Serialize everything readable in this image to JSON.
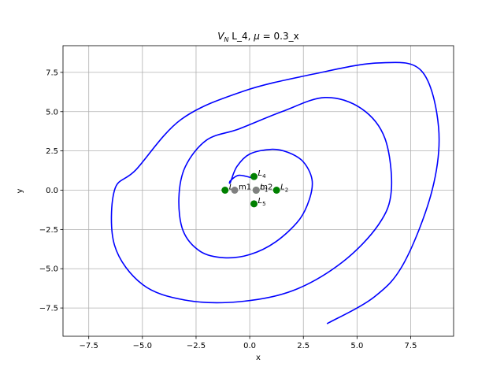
{
  "chart_data": {
    "type": "line",
    "title": "V_N L_4, μ = 0.3_x",
    "title_parts": {
      "symbol": "V",
      "subscript": "N",
      "rest": " L_4, ",
      "mu": "μ",
      "tail": " = 0.3_x"
    },
    "xlabel": "x",
    "ylabel": "y",
    "xlim": [
      -8.7,
      9.5
    ],
    "ylim": [
      -9.3,
      9.2
    ],
    "xticks": [
      -7.5,
      -5.0,
      -2.5,
      0.0,
      2.5,
      5.0,
      7.5
    ],
    "xtick_labels": [
      "−7.5",
      "−5.0",
      "−2.5",
      "0.0",
      "2.5",
      "5.0",
      "7.5"
    ],
    "yticks": [
      -7.5,
      -5.0,
      -2.5,
      0.0,
      2.5,
      5.0,
      7.5
    ],
    "ytick_labels": [
      "−7.5",
      "−5.0",
      "−2.5",
      "0.0",
      "2.5",
      "5.0",
      "7.5"
    ],
    "grid": true,
    "series": [
      {
        "color": "#0000ff",
        "x": [
          0.2,
          -0.5,
          -0.9,
          -0.9,
          -0.6,
          0.0,
          1.0,
          1.8,
          2.5,
          2.9,
          2.8,
          2.3,
          1.2,
          0.0,
          -1.2,
          -2.3,
          -3.1,
          -3.3,
          -3.0,
          -2.0,
          -0.5,
          1.5,
          3.5,
          5.2,
          6.3,
          6.6,
          6.0,
          4.3,
          2.0,
          -0.5,
          -3.0,
          -5.0,
          -6.3,
          -6.3,
          -5.3,
          -3.2,
          -0.3,
          3.0,
          6.0,
          8.0,
          8.8,
          8.5,
          7.2,
          5.8,
          3.6
        ],
        "y": [
          0.75,
          0.95,
          0.6,
          0.5,
          1.5,
          2.3,
          2.6,
          2.4,
          1.8,
          0.7,
          -0.5,
          -1.9,
          -3.3,
          -4.1,
          -4.3,
          -3.9,
          -2.6,
          -0.5,
          1.5,
          3.2,
          3.9,
          5.0,
          5.9,
          5.2,
          3.3,
          0.0,
          -2.2,
          -4.6,
          -6.4,
          -7.1,
          -7.0,
          -6.0,
          -3.5,
          0.0,
          1.3,
          4.5,
          6.3,
          7.4,
          8.1,
          7.6,
          4.0,
          0.0,
          -4.6,
          -6.8,
          -8.5
        ]
      }
    ],
    "points": [
      {
        "name": "L_1",
        "label_main": "L",
        "label_sub": "1",
        "x": 0.3,
        "y": 0.0,
        "color": "#008000"
      },
      {
        "name": "L_2",
        "label_main": "L",
        "label_sub": "2",
        "x": 1.25,
        "y": 0.0,
        "color": "#008000"
      },
      {
        "name": "L_3",
        "label_main": "L",
        "label_sub": "3",
        "x": -1.15,
        "y": 0.0,
        "color": "#008000"
      },
      {
        "name": "L_4",
        "label_main": "L",
        "label_sub": "4",
        "x": 0.2,
        "y": 0.87,
        "color": "#008000"
      },
      {
        "name": "L_5",
        "label_main": "L",
        "label_sub": "5",
        "x": 0.2,
        "y": -0.87,
        "color": "#008000"
      },
      {
        "name": "m1",
        "label_main": "m1",
        "label_sub": "",
        "x": -0.7,
        "y": 0.0,
        "color": "#808080"
      },
      {
        "name": "m2",
        "label_main": "m2",
        "label_sub": "",
        "x": 0.3,
        "y": 0.0,
        "color": "#808080"
      }
    ]
  }
}
